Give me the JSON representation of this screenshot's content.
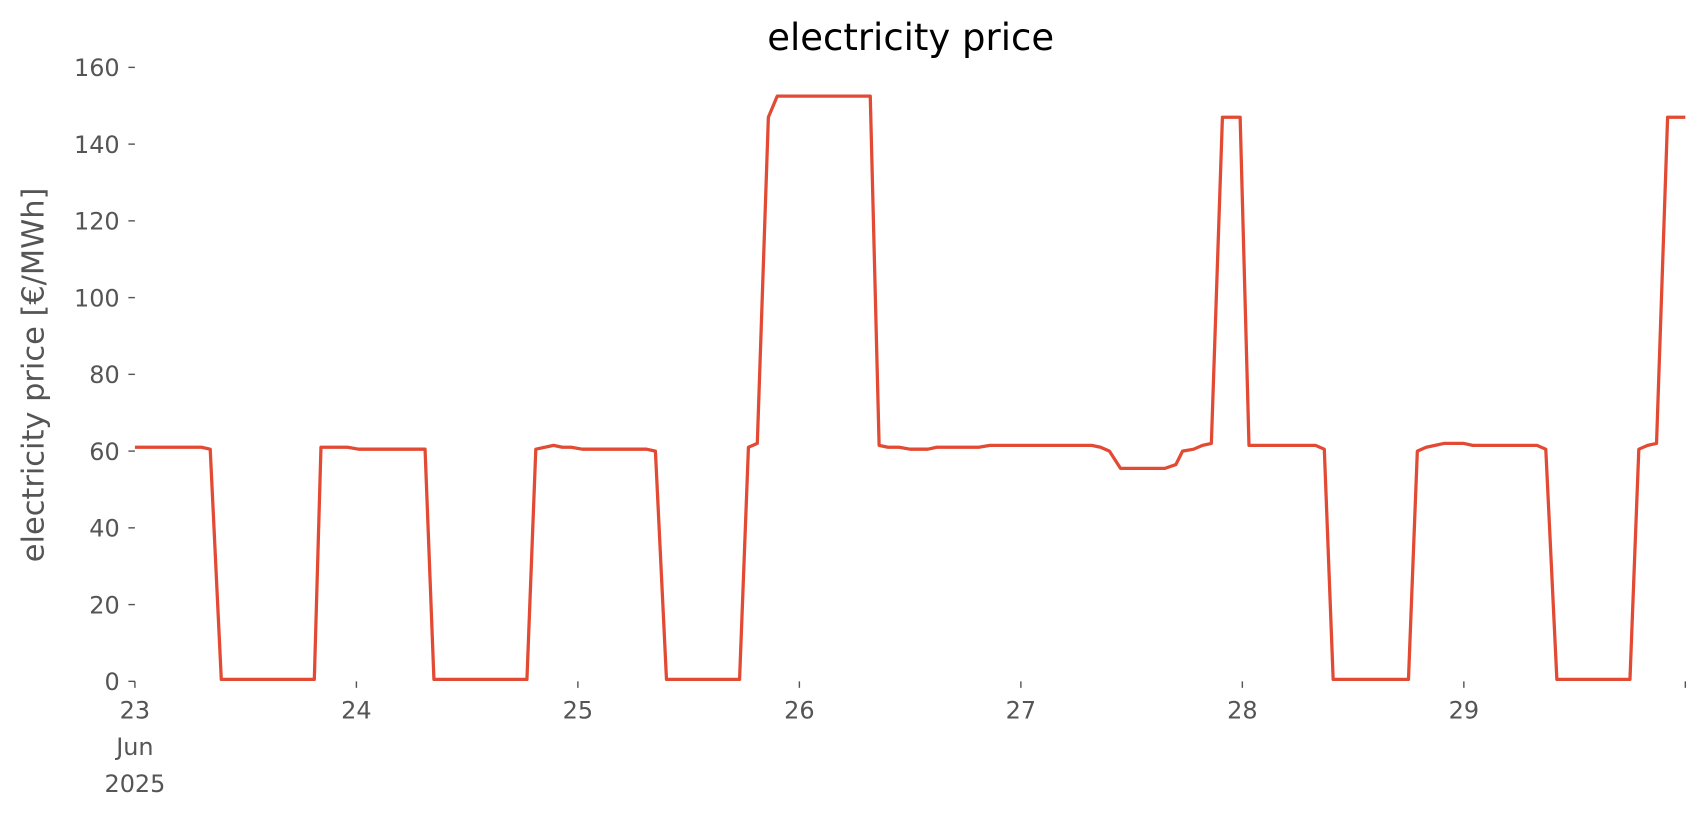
{
  "chart_data": {
    "type": "line",
    "title": "electricity price",
    "ylabel": "electricity price [€/MWh]",
    "color": "#e24a33",
    "x": [
      23.0,
      23.3,
      23.34,
      23.39,
      23.81,
      23.84,
      23.96,
      24.01,
      24.31,
      24.35,
      24.77,
      24.81,
      24.89,
      24.93,
      24.97,
      25.02,
      25.31,
      25.35,
      25.4,
      25.73,
      25.77,
      25.81,
      25.86,
      25.9,
      26.32,
      26.36,
      26.4,
      26.45,
      26.5,
      26.58,
      26.62,
      26.81,
      26.86,
      27.32,
      27.36,
      27.4,
      27.45,
      27.65,
      27.7,
      27.73,
      27.78,
      27.82,
      27.86,
      27.91,
      27.99,
      28.03,
      28.33,
      28.37,
      28.41,
      28.75,
      28.79,
      28.83,
      28.87,
      28.91,
      29.0,
      29.04,
      29.33,
      29.37,
      29.42,
      29.75,
      29.79,
      29.83,
      29.87,
      29.92,
      30.0
    ],
    "values": [
      61,
      61,
      60.5,
      0.5,
      0.5,
      61,
      61,
      60.5,
      60.5,
      0.5,
      0.5,
      60.5,
      61.5,
      61,
      61,
      60.5,
      60.5,
      60,
      0.5,
      0.5,
      61,
      62,
      147,
      152.5,
      152.5,
      61.5,
      61,
      61,
      60.5,
      60.5,
      61,
      61,
      61.5,
      61.5,
      61,
      60,
      55.5,
      55.5,
      56.5,
      60,
      60.5,
      61.5,
      62,
      147,
      147,
      61.5,
      61.5,
      60.5,
      0.5,
      0.5,
      60,
      61,
      61.5,
      62,
      62,
      61.5,
      61.5,
      60.5,
      0.5,
      0.5,
      60.5,
      61.5,
      62,
      147,
      147
    ],
    "xlim": [
      23,
      30
    ],
    "xticks": [
      {
        "value": 23,
        "label": "23\nJun\n2025"
      },
      24,
      25,
      26,
      27,
      28,
      29,
      {
        "value": 30,
        "label": null
      }
    ],
    "ylim": [
      0,
      160
    ],
    "yticks": [
      0,
      20,
      40,
      60,
      80,
      100,
      120,
      140,
      160
    ],
    "grid": false
  }
}
